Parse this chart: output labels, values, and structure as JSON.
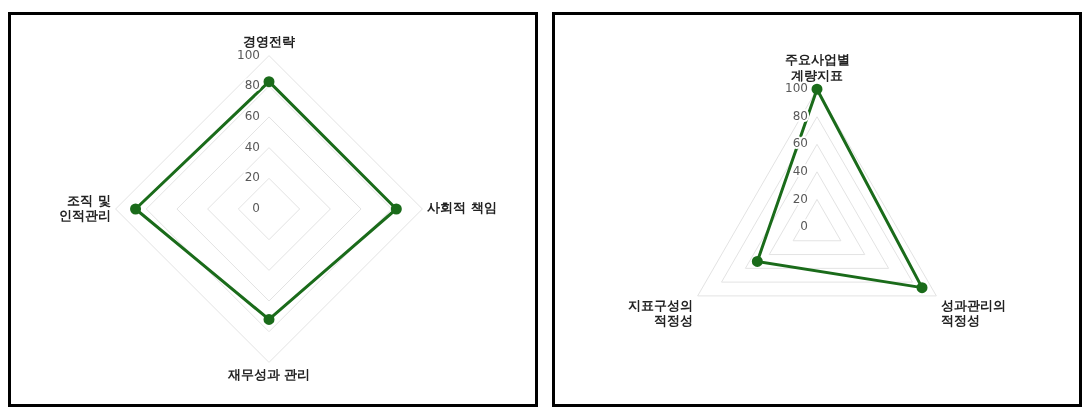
{
  "chart_data": [
    {
      "type": "radar",
      "categories": [
        "경영전략",
        "사회적 책임",
        "재무성과 관리",
        "조직 및\n인적관리"
      ],
      "series": [
        {
          "color": "#1a6b1a",
          "values": [
            83,
            83,
            72,
            87
          ]
        }
      ],
      "ylim": [
        0,
        100
      ],
      "yticks": [
        0,
        20,
        40,
        60,
        80,
        100
      ],
      "grid": true,
      "legend": false,
      "marker": "circle"
    },
    {
      "type": "radar",
      "categories": [
        "주요사업별\n계량지표",
        "성과관리의\n적정성",
        "지표구성의\n적정성"
      ],
      "series": [
        {
          "color": "#1a6b1a",
          "values": [
            100,
            88,
            50
          ]
        }
      ],
      "ylim": [
        0,
        100
      ],
      "yticks": [
        0,
        20,
        40,
        60,
        80,
        100
      ],
      "grid": true,
      "legend": false,
      "marker": "circle"
    }
  ]
}
